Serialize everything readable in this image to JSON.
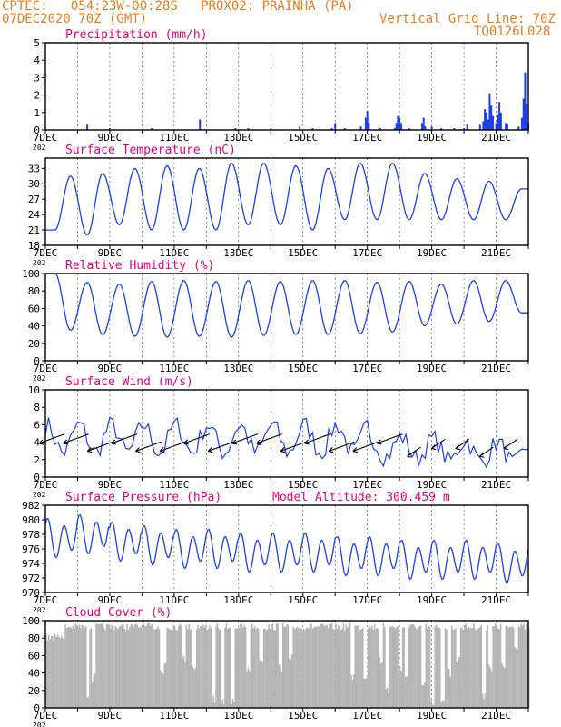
{
  "header": {
    "line1": "CPTEC:   054:23W-00:28S   PROX02: PRAINHA (PA)",
    "line2_left": "07DEC2020 70Z (GMT)",
    "line2_right": "Vertical Grid Line: 70Z",
    "line3_right": "TQ0126L028",
    "color": "#e67e22"
  },
  "x_axis": {
    "start_day": 7,
    "end_day": 22,
    "tick_labels": [
      "7DEC",
      "9DEC",
      "11DEC",
      "13DEC",
      "15DEC",
      "17DEC",
      "19DEC",
      "21DEC"
    ],
    "under_label": "202"
  },
  "colors": {
    "title": "#e6007e",
    "series": "#1f3fe6",
    "cloud": "#b4b4b4",
    "frame": "#000000",
    "grid": "#444444"
  },
  "chart_data": [
    {
      "type": "bar",
      "title": "Precipitation (mm/h)",
      "ylim": [
        0,
        5
      ],
      "yticks": [
        0,
        1,
        2,
        3,
        4,
        5
      ],
      "bars": [
        [
          8.3,
          0.3
        ],
        [
          9.0,
          0.1
        ],
        [
          10.3,
          0.1
        ],
        [
          11.8,
          0.6
        ],
        [
          12.9,
          0.1
        ],
        [
          13.3,
          0.1
        ],
        [
          14.0,
          0.1
        ],
        [
          14.9,
          0.2
        ],
        [
          15.3,
          0.1
        ],
        [
          15.9,
          0.1
        ],
        [
          16.0,
          0.4
        ],
        [
          16.3,
          0.1
        ],
        [
          16.8,
          0.2
        ],
        [
          16.95,
          0.7
        ],
        [
          17.0,
          1.1
        ],
        [
          17.05,
          0.4
        ],
        [
          17.4,
          0.1
        ],
        [
          17.85,
          0.1
        ],
        [
          17.9,
          0.4
        ],
        [
          17.95,
          0.8
        ],
        [
          18.0,
          0.7
        ],
        [
          18.05,
          0.4
        ],
        [
          18.3,
          0.1
        ],
        [
          18.7,
          0.4
        ],
        [
          18.75,
          0.7
        ],
        [
          18.8,
          0.2
        ],
        [
          19.0,
          0.2
        ],
        [
          19.3,
          0.1
        ],
        [
          19.7,
          0.1
        ],
        [
          20.0,
          0.1
        ],
        [
          20.1,
          0.3
        ],
        [
          20.5,
          0.3
        ],
        [
          20.6,
          0.5
        ],
        [
          20.65,
          1.2
        ],
        [
          20.7,
          1.0
        ],
        [
          20.75,
          0.6
        ],
        [
          20.8,
          2.1
        ],
        [
          20.85,
          1.4
        ],
        [
          20.9,
          0.8
        ],
        [
          21.0,
          0.4
        ],
        [
          21.05,
          0.9
        ],
        [
          21.1,
          1.6
        ],
        [
          21.15,
          1.0
        ],
        [
          21.3,
          0.4
        ],
        [
          21.35,
          0.3
        ],
        [
          21.7,
          0.2
        ],
        [
          21.8,
          0.7
        ],
        [
          21.85,
          1.8
        ],
        [
          21.9,
          3.3
        ],
        [
          21.95,
          1.5
        ],
        [
          22.0,
          0.4
        ]
      ]
    },
    {
      "type": "line",
      "title": "Surface Temperature (nC)",
      "ylim": [
        18,
        35
      ],
      "yticks": [
        18,
        21,
        24,
        27,
        30,
        33
      ],
      "min_v": [
        21,
        20,
        22,
        21,
        21,
        21,
        22,
        22,
        21,
        23,
        23,
        23,
        23,
        23,
        23
      ],
      "max_v": [
        31.5,
        32,
        33,
        33.5,
        33,
        34,
        34,
        33.5,
        33,
        34,
        34,
        32,
        31,
        30.5,
        29
      ],
      "min_phase": 0.3,
      "max_phase": 0.78
    },
    {
      "type": "line",
      "title": "Relative Humidity (%)",
      "ylim": [
        0,
        100
      ],
      "yticks": [
        0,
        20,
        40,
        60,
        80,
        100
      ],
      "min_v": [
        35,
        30,
        28,
        27,
        28,
        27,
        29,
        30,
        30,
        31,
        33,
        40,
        42,
        45,
        55
      ],
      "max_v": [
        100,
        90,
        88,
        91,
        92,
        91,
        92,
        91,
        92,
        92,
        90,
        91,
        88,
        92,
        92
      ],
      "min_phase": 0.78,
      "max_phase": 0.3
    },
    {
      "type": "line",
      "title": "Surface Wind (m/s)",
      "ylim": [
        0,
        10
      ],
      "yticks": [
        0,
        2,
        4,
        6,
        8,
        10
      ],
      "arrows_y": 4,
      "arrows_stride": 0.75
    },
    {
      "type": "line",
      "title": "Surface Pressure (hPa)",
      "subtitle": "Model Altitude: 300.459 m",
      "ylim": [
        970,
        982
      ],
      "yticks": [
        970,
        972,
        974,
        976,
        978,
        980,
        982
      ],
      "mean": [
        977.5,
        978,
        977,
        976.5,
        976,
        976,
        975.5,
        975.5,
        975.5,
        975,
        975,
        974.5,
        974.5,
        974.5,
        974
      ],
      "amplitude": 2.2
    },
    {
      "type": "area",
      "title": "Cloud Cover (%)",
      "ylim": [
        0,
        100
      ],
      "yticks": [
        0,
        20,
        40,
        60,
        80,
        100
      ],
      "dips": [
        [
          8.3,
          4
        ],
        [
          8.5,
          30
        ],
        [
          10.6,
          35
        ],
        [
          10.7,
          45
        ],
        [
          11.3,
          50
        ],
        [
          11.6,
          40
        ],
        [
          12.2,
          5
        ],
        [
          12.5,
          3
        ],
        [
          12.8,
          1
        ],
        [
          13.3,
          40
        ],
        [
          13.7,
          45
        ],
        [
          14.3,
          40
        ],
        [
          14.6,
          55
        ],
        [
          16.5,
          30
        ],
        [
          16.9,
          25
        ],
        [
          17.4,
          50
        ],
        [
          17.6,
          15
        ],
        [
          18.0,
          40
        ],
        [
          18.2,
          30
        ],
        [
          18.7,
          25
        ],
        [
          19.0,
          1
        ],
        [
          19.3,
          2
        ],
        [
          19.5,
          35
        ],
        [
          19.8,
          50
        ],
        [
          20.6,
          10
        ],
        [
          20.8,
          40
        ],
        [
          21.2,
          45
        ],
        [
          21.6,
          60
        ]
      ]
    }
  ]
}
